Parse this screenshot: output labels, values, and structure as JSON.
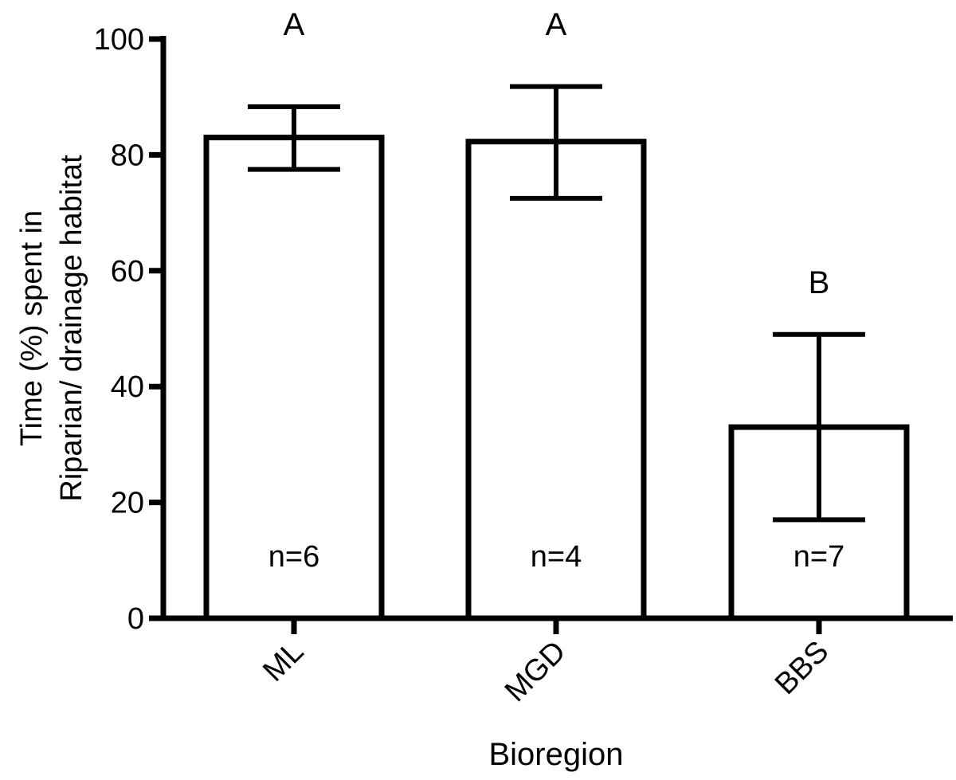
{
  "chart_data": {
    "type": "bar",
    "categories": [
      "ML",
      "MGD",
      "BBS"
    ],
    "values": [
      83,
      82.3,
      33
    ],
    "error_low": [
      77.5,
      72.5,
      17
    ],
    "error_high": [
      88.3,
      91.8,
      49
    ],
    "significance_labels": [
      "A",
      "A",
      "B"
    ],
    "sample_labels": [
      "n=6",
      "n=4",
      "n=7"
    ],
    "xlabel": "Bioregion",
    "ylabel_lines": [
      "Time (%) spent in",
      "Riparian/ drainage habitat"
    ],
    "ylim": [
      0,
      100
    ],
    "yticks": [
      0,
      20,
      40,
      60,
      80,
      100
    ],
    "grid": false,
    "legend": "none",
    "bar_fill": "#ffffff",
    "stroke_color": "#000000"
  }
}
